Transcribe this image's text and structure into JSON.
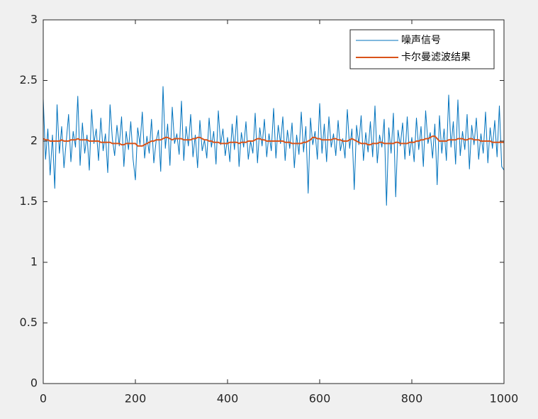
{
  "chart_data": {
    "type": "line",
    "x": [
      0,
      5,
      10,
      15,
      20,
      25,
      30,
      35,
      40,
      45,
      50,
      55,
      60,
      65,
      70,
      75,
      80,
      85,
      90,
      95,
      100,
      105,
      110,
      115,
      120,
      125,
      130,
      135,
      140,
      145,
      150,
      155,
      160,
      165,
      170,
      175,
      180,
      185,
      190,
      195,
      200,
      205,
      210,
      215,
      220,
      225,
      230,
      235,
      240,
      245,
      250,
      255,
      260,
      265,
      270,
      275,
      280,
      285,
      290,
      295,
      300,
      305,
      310,
      315,
      320,
      325,
      330,
      335,
      340,
      345,
      350,
      355,
      360,
      365,
      370,
      375,
      380,
      385,
      390,
      395,
      400,
      405,
      410,
      415,
      420,
      425,
      430,
      435,
      440,
      445,
      450,
      455,
      460,
      465,
      470,
      475,
      480,
      485,
      490,
      495,
      500,
      505,
      510,
      515,
      520,
      525,
      530,
      535,
      540,
      545,
      550,
      555,
      560,
      565,
      570,
      575,
      580,
      585,
      590,
      595,
      600,
      605,
      610,
      615,
      620,
      625,
      630,
      635,
      640,
      645,
      650,
      655,
      660,
      665,
      670,
      675,
      680,
      685,
      690,
      695,
      700,
      705,
      710,
      715,
      720,
      725,
      730,
      735,
      740,
      745,
      750,
      755,
      760,
      765,
      770,
      775,
      780,
      785,
      790,
      795,
      800,
      805,
      810,
      815,
      820,
      825,
      830,
      835,
      840,
      845,
      850,
      855,
      860,
      865,
      870,
      875,
      880,
      885,
      890,
      895,
      900,
      905,
      910,
      915,
      920,
      925,
      930,
      935,
      940,
      945,
      950,
      955,
      960,
      965,
      970,
      975,
      980,
      985,
      990,
      995,
      1000
    ],
    "series": [
      {
        "name": "噪声信号",
        "color": "#0072bd",
        "width": 1,
        "values": [
          2.35,
          1.85,
          2.1,
          1.72,
          2.05,
          1.61,
          2.3,
          1.9,
          2.12,
          1.78,
          2.0,
          2.22,
          1.83,
          2.08,
          1.95,
          2.37,
          1.8,
          2.15,
          1.9,
          2.05,
          1.76,
          2.26,
          1.98,
          2.1,
          1.84,
          2.19,
          1.92,
          2.06,
          1.74,
          2.3,
          2.02,
          1.88,
          2.13,
          1.96,
          2.2,
          1.79,
          2.08,
          1.93,
          2.16,
          1.85,
          1.68,
          2.11,
          1.97,
          2.24,
          1.86,
          2.04,
          1.9,
          2.18,
          1.82,
          2.0,
          2.09,
          1.75,
          2.45,
          1.94,
          2.14,
          1.8,
          2.28,
          1.98,
          2.06,
          1.89,
          2.33,
          1.84,
          2.12,
          1.96,
          2.22,
          1.87,
          2.05,
          1.78,
          2.17,
          1.92,
          2.01,
          1.86,
          2.19,
          1.95,
          2.08,
          1.81,
          2.25,
          1.97,
          2.1,
          1.88,
          2.03,
          1.83,
          2.14,
          1.93,
          2.21,
          1.79,
          2.07,
          1.95,
          2.16,
          1.85,
          2.0,
          1.9,
          2.23,
          1.82,
          2.11,
          1.96,
          2.18,
          1.87,
          2.06,
          1.92,
          2.27,
          1.86,
          2.13,
          1.98,
          2.2,
          1.84,
          2.09,
          1.94,
          2.15,
          1.78,
          2.05,
          1.89,
          2.24,
          1.91,
          2.12,
          1.57,
          2.19,
          1.97,
          2.08,
          1.85,
          2.31,
          1.9,
          2.14,
          1.83,
          2.2,
          1.95,
          2.06,
          1.88,
          2.17,
          1.92,
          2.02,
          1.86,
          2.26,
          1.94,
          2.1,
          1.6,
          2.13,
          1.97,
          2.21,
          1.84,
          2.07,
          1.91,
          2.16,
          1.87,
          2.29,
          1.82,
          2.05,
          1.95,
          2.18,
          1.47,
          2.11,
          1.9,
          2.23,
          1.54,
          2.09,
          1.96,
          2.15,
          1.85,
          2.2,
          1.88,
          2.03,
          1.83,
          2.19,
          1.93,
          2.12,
          1.79,
          2.25,
          1.98,
          2.07,
          1.86,
          2.14,
          1.64,
          2.21,
          1.9,
          2.1,
          1.84,
          2.38,
          1.95,
          2.16,
          1.81,
          2.34,
          1.88,
          2.08,
          1.93,
          2.22,
          1.77,
          2.13,
          1.97,
          2.19,
          1.85,
          2.06,
          1.9,
          2.24,
          1.82,
          2.11,
          1.94,
          2.17,
          1.87,
          2.29,
          1.79,
          1.76
        ]
      },
      {
        "name": "卡尔曼滤波结果",
        "color": "#d95319",
        "width": 2,
        "values": [
          2.02,
          2.01,
          2.01,
          2.0,
          2.0,
          2.0,
          2.0,
          2.0,
          2.01,
          2.0,
          2.0,
          2.0,
          2.01,
          2.01,
          2.01,
          2.02,
          2.01,
          2.01,
          2.01,
          2.01,
          2.0,
          2.0,
          2.0,
          2.0,
          2.0,
          1.99,
          1.99,
          1.99,
          1.99,
          1.99,
          1.98,
          1.98,
          1.98,
          1.98,
          1.97,
          1.97,
          1.98,
          1.98,
          1.98,
          1.98,
          1.98,
          1.96,
          1.96,
          1.96,
          1.97,
          1.98,
          1.99,
          2.0,
          2.0,
          2.01,
          2.01,
          2.01,
          2.02,
          2.03,
          2.03,
          2.02,
          2.01,
          2.02,
          2.02,
          2.02,
          2.02,
          2.01,
          2.01,
          2.01,
          2.01,
          2.02,
          2.02,
          2.03,
          2.03,
          2.02,
          2.01,
          2.01,
          2.0,
          2.0,
          1.99,
          1.99,
          1.99,
          1.98,
          1.98,
          1.98,
          1.98,
          1.99,
          1.99,
          1.99,
          1.99,
          1.98,
          1.99,
          1.99,
          1.99,
          2.0,
          2.0,
          2.0,
          2.01,
          2.02,
          2.02,
          2.01,
          2.01,
          2.0,
          2.0,
          2.0,
          2.0,
          2.0,
          2.0,
          2.0,
          2.0,
          1.99,
          1.99,
          1.99,
          1.98,
          1.98,
          1.98,
          1.98,
          1.98,
          1.99,
          1.99,
          2.0,
          2.01,
          2.03,
          2.03,
          2.02,
          2.02,
          2.01,
          2.01,
          2.01,
          2.01,
          2.01,
          2.02,
          2.02,
          2.01,
          2.01,
          2.0,
          2.0,
          2.0,
          2.01,
          2.02,
          2.01,
          2.0,
          1.99,
          1.98,
          1.98,
          1.98,
          1.97,
          1.97,
          1.98,
          1.98,
          1.98,
          1.99,
          1.99,
          1.98,
          1.98,
          1.98,
          1.98,
          1.98,
          1.99,
          1.99,
          1.98,
          1.98,
          1.98,
          1.98,
          1.99,
          1.99,
          1.99,
          2.0,
          2.0,
          2.01,
          2.01,
          2.02,
          2.02,
          2.03,
          2.04,
          2.04,
          2.02,
          2.0,
          2.0,
          2.0,
          2.0,
          2.01,
          2.01,
          2.01,
          2.01,
          2.02,
          2.02,
          2.02,
          2.01,
          2.01,
          2.02,
          2.02,
          2.01,
          2.01,
          2.01,
          2.0,
          2.0,
          2.0,
          2.0,
          2.0,
          1.99,
          1.99,
          1.99,
          1.99,
          1.99,
          1.99
        ]
      }
    ],
    "xlim": [
      0,
      1000
    ],
    "xticks": [
      0,
      200,
      400,
      600,
      800,
      1000
    ],
    "ylim": [
      0,
      3
    ],
    "yticks": [
      0,
      0.5,
      1,
      1.5,
      2,
      2.5,
      3
    ],
    "legend": "northeast"
  }
}
